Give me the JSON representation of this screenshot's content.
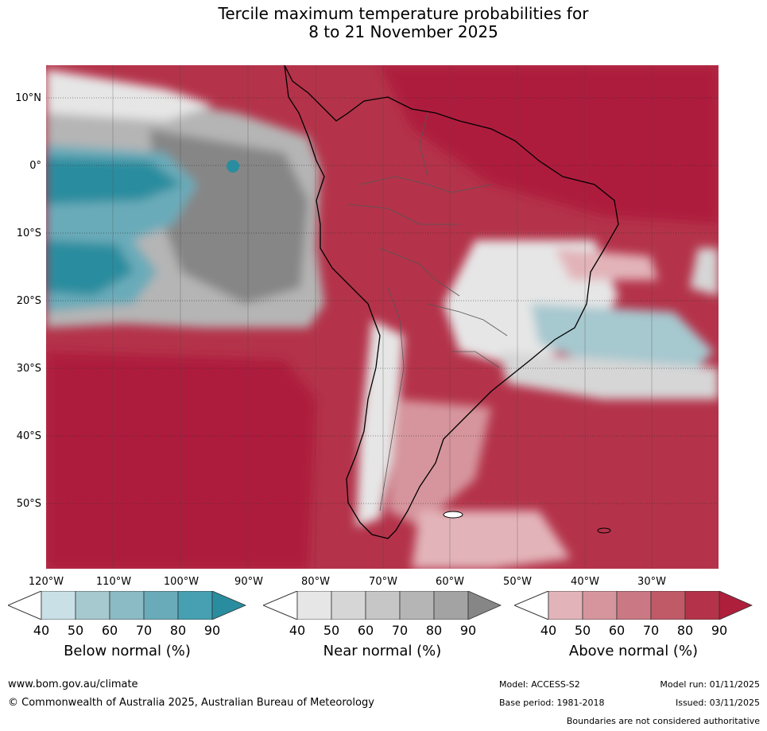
{
  "title": {
    "line1": "Tercile maximum temperature probabilities for",
    "line2": "8 to 21 November 2025"
  },
  "lat_labels": [
    "10°N",
    "0°",
    "10°S",
    "20°S",
    "30°S",
    "40°S",
    "50°S"
  ],
  "lon_labels": [
    "120°W",
    "110°W",
    "100°W",
    "90°W",
    "80°W",
    "70°W",
    "60°W",
    "50°W",
    "40°W",
    "30°W"
  ],
  "colorbars": [
    {
      "label": "Below normal (%)",
      "ticks": [
        "40",
        "50",
        "60",
        "70",
        "80",
        "90"
      ],
      "colors": [
        "#c8e0e6",
        "#a6c8cf",
        "#8bbbc4",
        "#6aabb9",
        "#46a0b2",
        "#2a8d9f"
      ]
    },
    {
      "label": "Near normal (%)",
      "ticks": [
        "40",
        "50",
        "60",
        "70",
        "80",
        "90"
      ],
      "colors": [
        "#e6e6e6",
        "#d6d6d6",
        "#c6c6c6",
        "#b5b5b5",
        "#a3a3a3",
        "#868686"
      ]
    },
    {
      "label": "Above normal (%)",
      "ticks": [
        "40",
        "50",
        "60",
        "70",
        "80",
        "90"
      ],
      "colors": [
        "#e2b4b9",
        "#d6959d",
        "#ca7883",
        "#c05a67",
        "#b4334a",
        "#ae1f3c"
      ]
    }
  ],
  "footer": {
    "website": "www.bom.gov.au/climate",
    "copyright": "© Commonwealth of Australia 2025, Australian Bureau of Meteorology",
    "model": "Model: ACCESS-S2",
    "model_run": "Model run: 01/11/2025",
    "base_period": "Base period: 1981-2018",
    "issued": "Issued: 03/11/2025",
    "disclaimer": "Boundaries are not considered authoritative"
  }
}
